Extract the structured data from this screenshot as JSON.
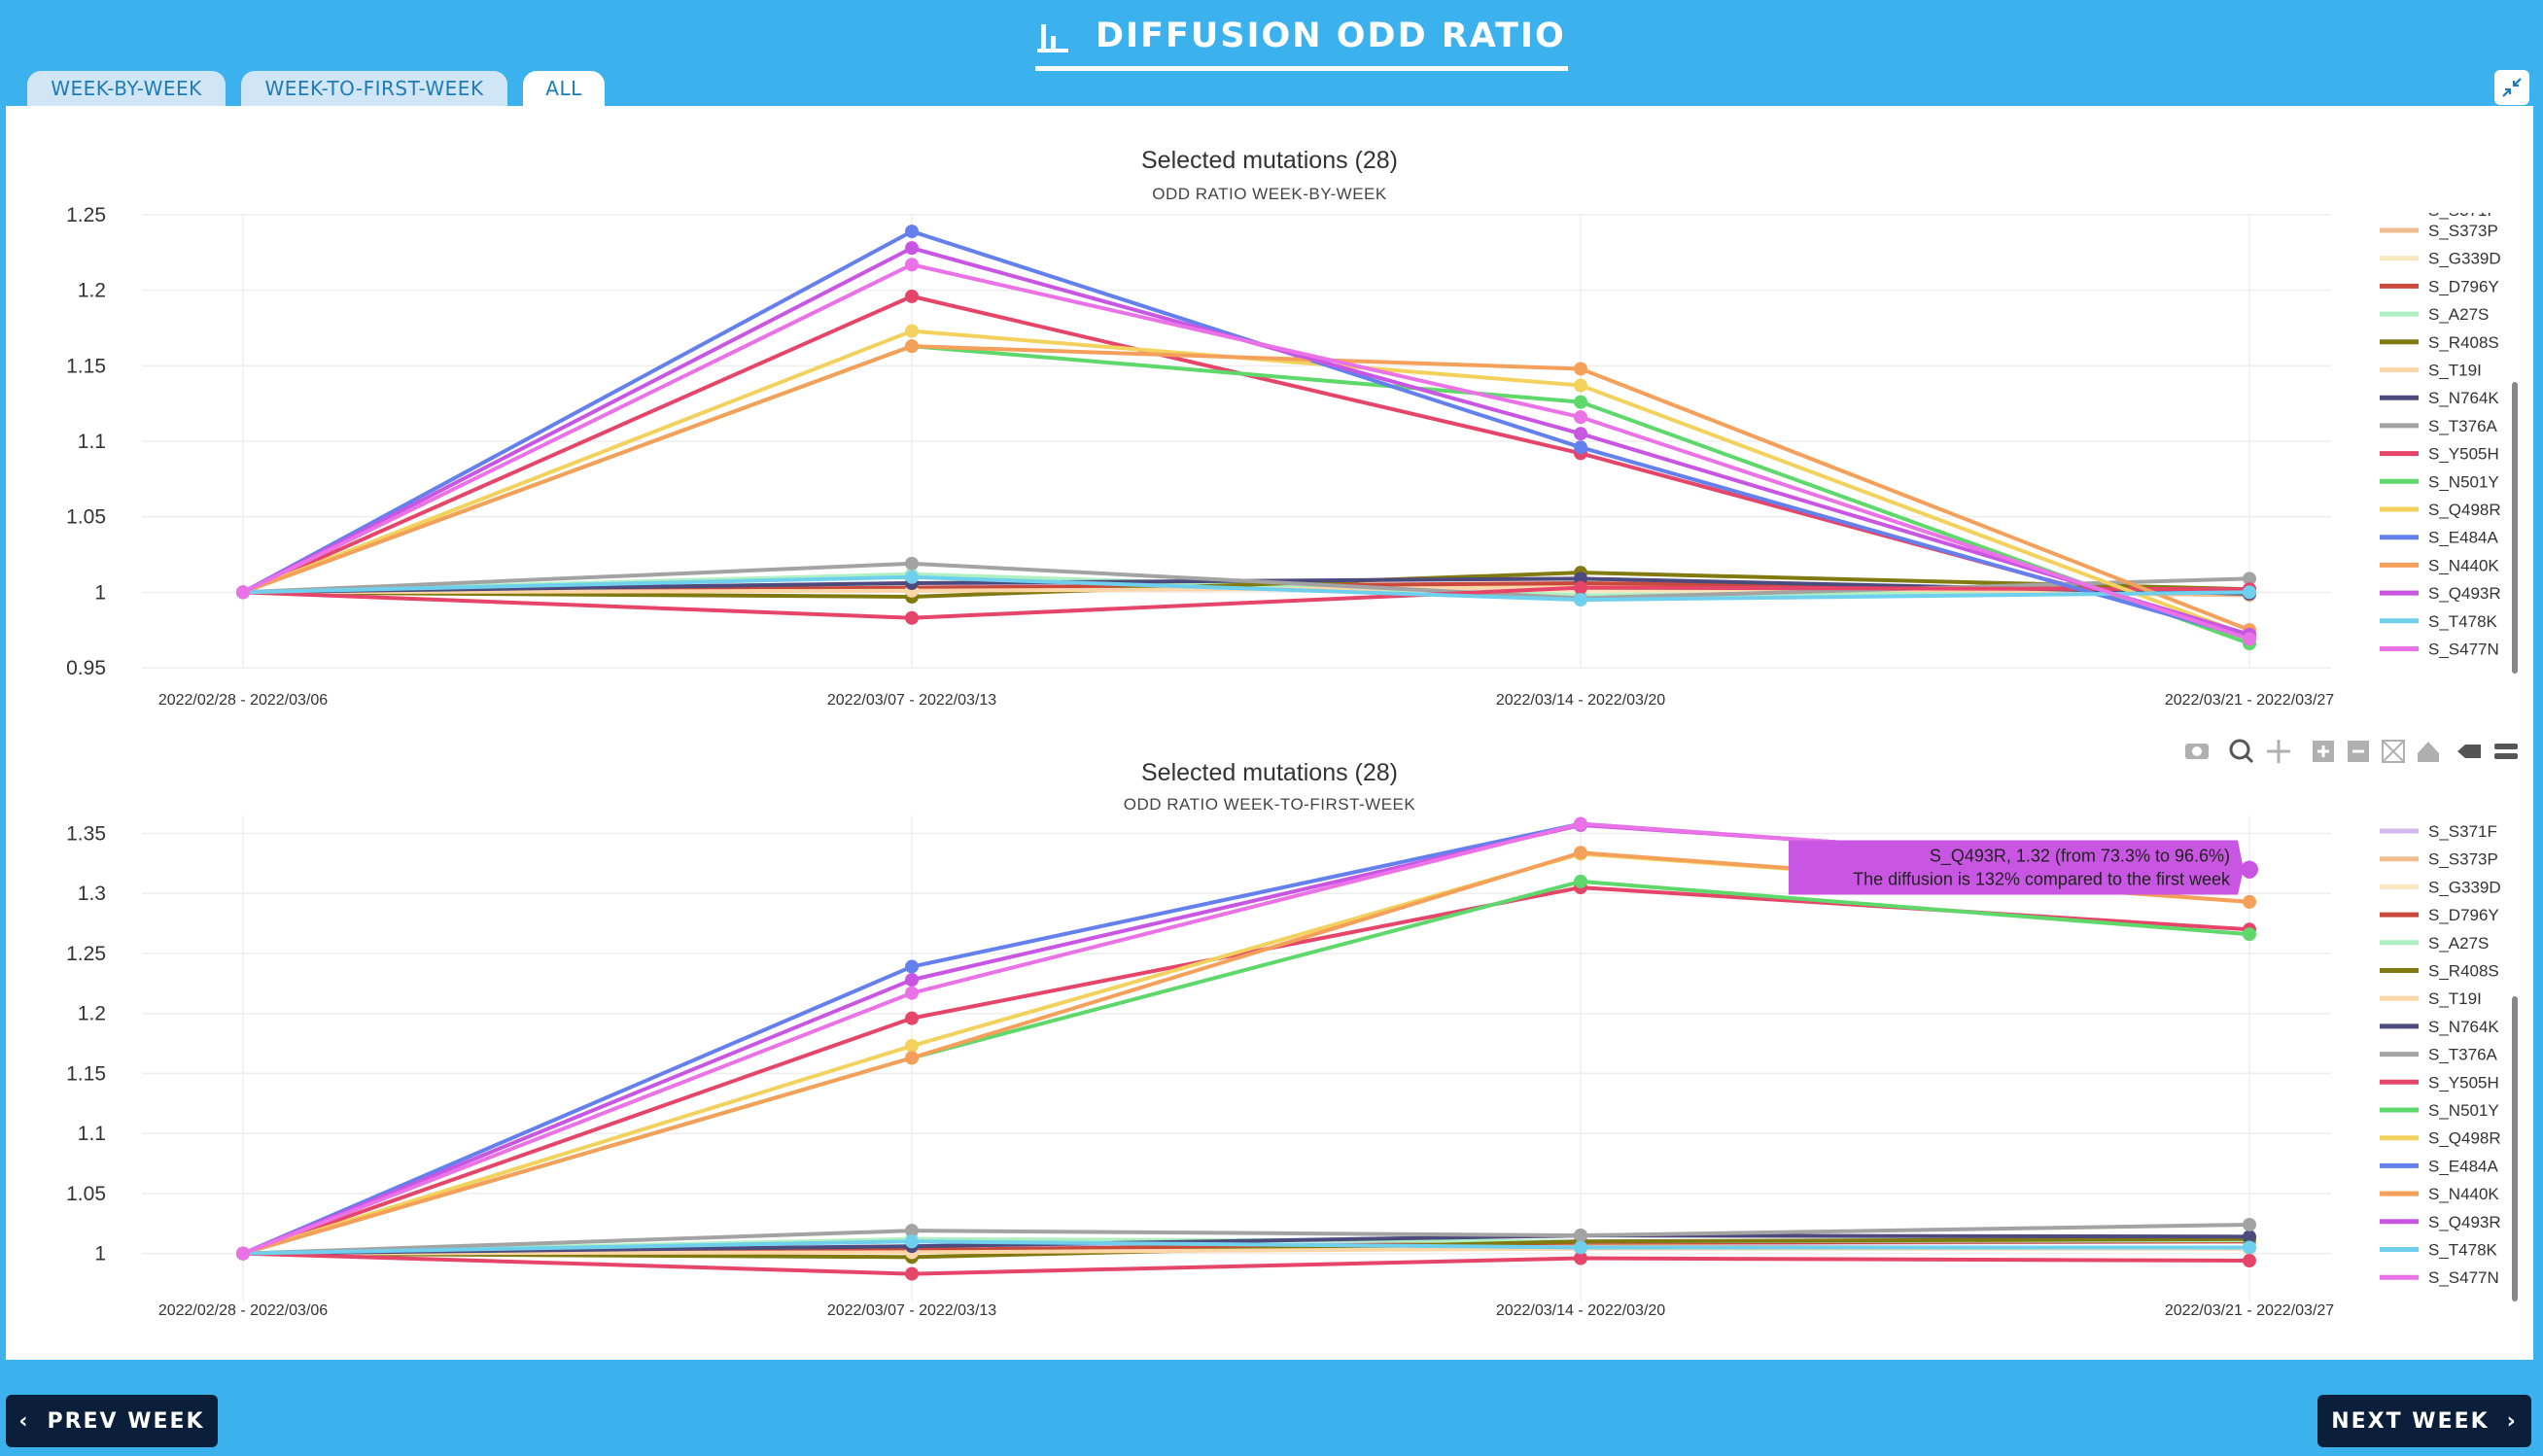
{
  "header": {
    "title": "DIFFUSION ODD RATIO",
    "icon": "bar-chart-icon"
  },
  "tabs": [
    {
      "label": "WEEK-BY-WEEK",
      "active": false
    },
    {
      "label": "WEEK-TO-FIRST-WEEK",
      "active": false
    },
    {
      "label": "ALL",
      "active": true
    }
  ],
  "nav": {
    "prev_label": "PREV WEEK",
    "next_label": "NEXT WEEK"
  },
  "colors": {
    "background": "#3bb1ee",
    "accent": "#0b1f3a"
  },
  "modebar": [
    "camera-icon",
    "zoom-icon",
    "pan-icon",
    "zoom-in-icon",
    "zoom-out-icon",
    "autoscale-icon",
    "reset-axes-icon",
    "hover-closest-icon",
    "hover-compare-icon"
  ],
  "chart_data": [
    {
      "type": "line",
      "title": "Selected mutations (28)",
      "subtitle": "ODD RATIO WEEK-BY-WEEK",
      "categories": [
        "2022/02/28 - 2022/03/06",
        "2022/03/07 - 2022/03/13",
        "2022/03/14 - 2022/03/20",
        "2022/03/21 - 2022/03/27"
      ],
      "ylim": [
        0.95,
        1.25
      ],
      "yticks": [
        0.95,
        1,
        1.05,
        1.1,
        1.15,
        1.2,
        1.25
      ],
      "ytick_labels": [
        "0.95",
        "1",
        "1.05",
        "1.1",
        "1.15",
        "1.2",
        "1.25"
      ],
      "grid": true,
      "legend_position": "right",
      "legend_partial_top": "S_S371F",
      "series": [
        {
          "name": "S_S371F",
          "color": "#d3b9f0",
          "values": [
            1,
            1.006,
            1.002,
            1.002
          ]
        },
        {
          "name": "S_S373P",
          "color": "#f2bd8e",
          "values": [
            1,
            1.002,
            1.004,
            0.998
          ]
        },
        {
          "name": "S_G339D",
          "color": "#f9e7c0",
          "values": [
            1,
            1.003,
            1.001,
            1.0
          ]
        },
        {
          "name": "S_D796Y",
          "color": "#c94a3c",
          "values": [
            1,
            1.003,
            1.006,
            1.001
          ]
        },
        {
          "name": "S_A27S",
          "color": "#aef0c2",
          "values": [
            1,
            1.012,
            0.998,
            1.001
          ]
        },
        {
          "name": "S_R408S",
          "color": "#807a10",
          "values": [
            1,
            0.997,
            1.013,
            1.002
          ]
        },
        {
          "name": "S_T19I",
          "color": "#ffd6a8",
          "values": [
            1,
            1.001,
            1.003,
            1.0
          ]
        },
        {
          "name": "S_N764K",
          "color": "#4d4a7d",
          "values": [
            1,
            1.006,
            1.009,
            0.999
          ]
        },
        {
          "name": "S_T376A",
          "color": "#a3a3a3",
          "values": [
            1,
            1.019,
            0.996,
            1.009
          ]
        },
        {
          "name": "S_Y505H",
          "color": "#e6456a",
          "values": [
            1,
            0.983,
            1.003,
            1.002
          ]
        },
        {
          "name": "S_N501Y",
          "color": "#5ed86b",
          "values": [
            1,
            1.163,
            1.126,
            0.966
          ]
        },
        {
          "name": "S_Q498R",
          "color": "#f2d25d",
          "values": [
            1,
            1.173,
            1.137,
            0.971
          ]
        },
        {
          "name": "S_E484A",
          "color": "#6380ec",
          "values": [
            1,
            1.239,
            1.096,
            0.97
          ]
        },
        {
          "name": "S_N440K",
          "color": "#f5a05a",
          "values": [
            1,
            1.163,
            1.148,
            0.975
          ]
        },
        {
          "name": "S_Q493R",
          "color": "#c856e2",
          "values": [
            1,
            1.228,
            1.105,
            0.972
          ]
        },
        {
          "name": "S_T478K",
          "color": "#6fd0ee",
          "values": [
            1,
            1.01,
            0.995,
            1.0
          ]
        },
        {
          "name": "S_S477N",
          "color": "#ea72e6",
          "values": [
            1,
            1.217,
            1.116,
            0.969
          ]
        }
      ],
      "extra_series": [
        {
          "color": "#e6456a",
          "values": [
            1,
            1.196,
            1.092,
            0.972
          ]
        }
      ]
    },
    {
      "type": "line",
      "title": "Selected mutations (28)",
      "subtitle": "ODD RATIO WEEK-TO-FIRST-WEEK",
      "categories": [
        "2022/02/28 - 2022/03/06",
        "2022/03/07 - 2022/03/13",
        "2022/03/14 - 2022/03/20",
        "2022/03/21 - 2022/03/27"
      ],
      "ylim": [
        0.96,
        1.365
      ],
      "yticks": [
        1,
        1.05,
        1.1,
        1.15,
        1.2,
        1.25,
        1.3,
        1.35
      ],
      "ytick_labels": [
        "1",
        "1.05",
        "1.1",
        "1.15",
        "1.2",
        "1.25",
        "1.3",
        "1.35"
      ],
      "grid": true,
      "legend_position": "right",
      "series": [
        {
          "name": "S_S371F",
          "color": "#d3b9f0",
          "values": [
            1,
            1.006,
            1.008,
            1.01
          ]
        },
        {
          "name": "S_S373P",
          "color": "#f2bd8e",
          "values": [
            1,
            1.002,
            1.006,
            1.004
          ]
        },
        {
          "name": "S_G339D",
          "color": "#f9e7c0",
          "values": [
            1,
            1.003,
            1.004,
            1.004
          ]
        },
        {
          "name": "S_D796Y",
          "color": "#c94a3c",
          "values": [
            1,
            1.003,
            1.009,
            1.01
          ]
        },
        {
          "name": "S_A27S",
          "color": "#aef0c2",
          "values": [
            1,
            1.012,
            1.01,
            1.011
          ]
        },
        {
          "name": "S_R408S",
          "color": "#807a10",
          "values": [
            1,
            0.997,
            1.01,
            1.012
          ]
        },
        {
          "name": "S_T19I",
          "color": "#ffd6a8",
          "values": [
            1,
            1.001,
            1.004,
            1.004
          ]
        },
        {
          "name": "S_N764K",
          "color": "#4d4a7d",
          "values": [
            1,
            1.006,
            1.015,
            1.014
          ]
        },
        {
          "name": "S_T376A",
          "color": "#a3a3a3",
          "values": [
            1,
            1.019,
            1.015,
            1.024
          ]
        },
        {
          "name": "S_Y505H",
          "color": "#e6456a",
          "values": [
            1,
            0.983,
            0.996,
            0.994
          ]
        },
        {
          "name": "S_N501Y",
          "color": "#5ed86b",
          "values": [
            1,
            1.163,
            1.31,
            1.266
          ]
        },
        {
          "name": "S_Q498R",
          "color": "#f2d25d",
          "values": [
            1,
            1.173,
            1.333,
            1.293
          ]
        },
        {
          "name": "S_E484A",
          "color": "#6380ec",
          "values": [
            1,
            1.239,
            1.358,
            1.318
          ]
        },
        {
          "name": "S_N440K",
          "color": "#f5a05a",
          "values": [
            1,
            1.163,
            1.334,
            1.293
          ]
        },
        {
          "name": "S_Q493R",
          "color": "#c856e2",
          "values": [
            1,
            1.228,
            1.357,
            1.32
          ]
        },
        {
          "name": "S_T478K",
          "color": "#6fd0ee",
          "values": [
            1,
            1.01,
            1.005,
            1.005
          ]
        },
        {
          "name": "S_S477N",
          "color": "#ea72e6",
          "values": [
            1,
            1.217,
            1.358,
            1.318
          ]
        }
      ],
      "extra_series": [
        {
          "color": "#e6456a",
          "values": [
            1,
            1.196,
            1.305,
            1.27
          ]
        }
      ],
      "tooltip": {
        "line1": "S_Q493R, 1.32 (from 73.3% to 96.6%)",
        "line2": "The diffusion is 132% compared to the first week",
        "series": "S_Q493R",
        "category_index": 3,
        "color": "#c856e2"
      }
    }
  ]
}
